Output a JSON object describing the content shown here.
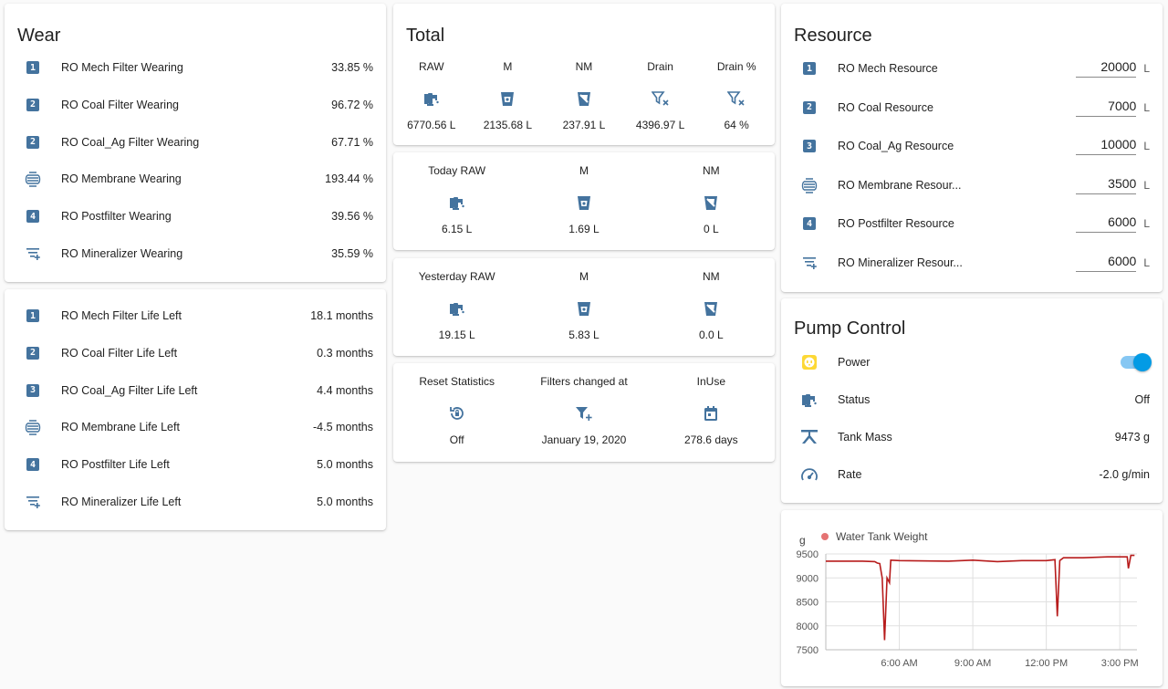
{
  "wear": {
    "title": "Wear",
    "items": [
      {
        "icon": "numeric-1-box-icon",
        "badge": "1",
        "name": "RO Mech Filter Wearing",
        "value": "33.85 %"
      },
      {
        "icon": "numeric-2-box-icon",
        "badge": "2",
        "name": "RO Coal Filter Wearing",
        "value": "96.72 %"
      },
      {
        "icon": "numeric-2-box-icon",
        "badge": "2",
        "name": "RO Coal_Ag Filter Wearing",
        "value": "67.71 %"
      },
      {
        "icon": "membrane-icon",
        "badge": "",
        "name": "RO Membrane Wearing",
        "value": "193.44 %"
      },
      {
        "icon": "numeric-4-box-icon",
        "badge": "4",
        "name": "RO Postfilter Wearing",
        "value": "39.56 %"
      },
      {
        "icon": "filter-plus-icon",
        "badge": "",
        "name": "RO Mineralizer Wearing",
        "value": "35.59 %"
      }
    ]
  },
  "life": {
    "items": [
      {
        "icon": "numeric-1-box-icon",
        "badge": "1",
        "name": "RO Mech Filter Life Left",
        "value": "18.1 months"
      },
      {
        "icon": "numeric-2-box-icon",
        "badge": "2",
        "name": "RO Coal Filter Life Left",
        "value": "0.3 months"
      },
      {
        "icon": "numeric-3-box-icon",
        "badge": "3",
        "name": "RO Coal_Ag Filter Life Left",
        "value": "4.4 months"
      },
      {
        "icon": "membrane-icon",
        "badge": "",
        "name": "RO Membrane Life Left",
        "value": "-4.5 months"
      },
      {
        "icon": "numeric-4-box-icon",
        "badge": "4",
        "name": "RO Postfilter Life Left",
        "value": "5.0 months"
      },
      {
        "icon": "filter-plus-icon",
        "badge": "",
        "name": "RO Mineralizer Life Left",
        "value": "5.0 months"
      }
    ]
  },
  "total": {
    "title": "Total",
    "cols": [
      {
        "label": "RAW",
        "icon": "water-pump-icon",
        "value": "6770.56 L"
      },
      {
        "label": "M",
        "icon": "cup-water-icon",
        "value": "2135.68 L"
      },
      {
        "label": "NM",
        "icon": "cup-off-icon",
        "value": "237.91 L"
      },
      {
        "label": "Drain",
        "icon": "filter-remove-icon",
        "value": "4396.97 L"
      },
      {
        "label": "Drain %",
        "icon": "filter-remove-icon",
        "value": "64 %"
      }
    ]
  },
  "today": {
    "cols": [
      {
        "label": "Today RAW",
        "icon": "water-pump-icon",
        "value": "6.15 L"
      },
      {
        "label": "M",
        "icon": "cup-water-icon",
        "value": "1.69 L"
      },
      {
        "label": "NM",
        "icon": "cup-off-icon",
        "value": "0 L"
      }
    ]
  },
  "yesterday": {
    "cols": [
      {
        "label": "Yesterday RAW",
        "icon": "water-pump-icon",
        "value": "19.15 L"
      },
      {
        "label": "M",
        "icon": "cup-water-icon",
        "value": "5.83 L"
      },
      {
        "label": "NM",
        "icon": "cup-off-icon",
        "value": "0.0 L"
      }
    ]
  },
  "stats": {
    "cols": [
      {
        "label": "Reset Statistics",
        "icon": "restore-icon",
        "value": "Off"
      },
      {
        "label": "Filters changed at",
        "icon": "filter-plus-icon",
        "value": "January 19, 2020"
      },
      {
        "label": "InUse",
        "icon": "calendar-icon",
        "value": "278.6 days"
      }
    ]
  },
  "resource": {
    "title": "Resource",
    "unit": "L",
    "items": [
      {
        "icon": "numeric-1-box-icon",
        "badge": "1",
        "name": "RO Mech Resource",
        "value": "20000"
      },
      {
        "icon": "numeric-2-box-icon",
        "badge": "2",
        "name": "RO Coal Resource",
        "value": "7000"
      },
      {
        "icon": "numeric-3-box-icon",
        "badge": "3",
        "name": "RO Coal_Ag Resource",
        "value": "10000"
      },
      {
        "icon": "membrane-icon",
        "badge": "",
        "name": "RO Membrane Resour...",
        "value": "3500"
      },
      {
        "icon": "numeric-4-box-icon",
        "badge": "4",
        "name": "RO Postfilter Resource",
        "value": "6000"
      },
      {
        "icon": "filter-plus-icon",
        "badge": "",
        "name": "RO Mineralizer Resour...",
        "value": "6000"
      }
    ]
  },
  "pump": {
    "title": "Pump Control",
    "power": {
      "name": "Power",
      "icon": "power-socket-icon",
      "icon_color": "#fdd835",
      "on": true
    },
    "items": [
      {
        "icon": "water-pump-icon",
        "name": "Status",
        "value": "Off"
      },
      {
        "icon": "scale-icon",
        "name": "Tank Mass",
        "value": "9473 g"
      },
      {
        "icon": "speedometer-icon",
        "name": "Rate",
        "value": "-2.0 g/min"
      }
    ]
  },
  "chart_data": {
    "type": "line",
    "unit": "g",
    "series": [
      {
        "name": "Water Tank Weight",
        "color": "#b71c1c",
        "points": [
          [
            3.0,
            9350
          ],
          [
            4.5,
            9350
          ],
          [
            5.0,
            9340
          ],
          [
            5.1,
            9310
          ],
          [
            5.2,
            9300
          ],
          [
            5.3,
            9000
          ],
          [
            5.4,
            7700
          ],
          [
            5.5,
            9000
          ],
          [
            5.6,
            8900
          ],
          [
            5.65,
            9370
          ],
          [
            6.0,
            9360
          ],
          [
            8.0,
            9350
          ],
          [
            9.0,
            9370
          ],
          [
            10.0,
            9340
          ],
          [
            11.0,
            9360
          ],
          [
            12.0,
            9360
          ],
          [
            12.35,
            9380
          ],
          [
            12.45,
            8200
          ],
          [
            12.55,
            9360
          ],
          [
            12.7,
            9420
          ],
          [
            13.5,
            9420
          ],
          [
            14.5,
            9440
          ],
          [
            15.3,
            9440
          ],
          [
            15.35,
            9200
          ],
          [
            15.45,
            9470
          ],
          [
            15.6,
            9470
          ]
        ]
      }
    ],
    "x_ticks": [
      "6:00 AM",
      "9:00 AM",
      "12:00 PM",
      "3:00 PM"
    ],
    "x_tick_values": [
      6,
      9,
      12,
      15
    ],
    "y_ticks": [
      9500,
      9000,
      8500,
      8000,
      7500
    ],
    "xlim": [
      3.0,
      15.7
    ],
    "ylim": [
      7500,
      9500
    ],
    "grid": true,
    "legend": "top-left"
  }
}
